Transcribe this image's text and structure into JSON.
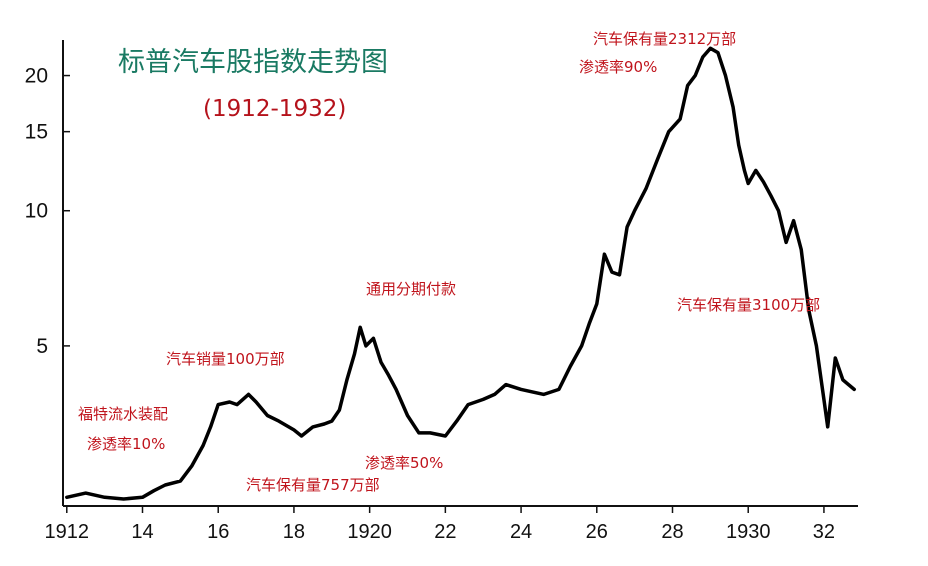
{
  "title": "标普汽车股指数走势图",
  "subtitle": "(1912-1932)",
  "chart_data": {
    "type": "line",
    "title": "标普汽车股指数走势图",
    "subtitle": "(1912-1932)",
    "y_scale": "log",
    "ylim": [
      2.2,
      24
    ],
    "xlim": [
      1911.9,
      1932.9
    ],
    "y_ticks": [
      5,
      10,
      15,
      20
    ],
    "x_ticks": [
      {
        "value": 1912,
        "label": "1912"
      },
      {
        "value": 1914,
        "label": "14"
      },
      {
        "value": 1916,
        "label": "16"
      },
      {
        "value": 1918,
        "label": "18"
      },
      {
        "value": 1920,
        "label": "1920"
      },
      {
        "value": 1922,
        "label": "22"
      },
      {
        "value": 1924,
        "label": "24"
      },
      {
        "value": 1926,
        "label": "26"
      },
      {
        "value": 1928,
        "label": "28"
      },
      {
        "value": 1930,
        "label": "1930"
      },
      {
        "value": 1932,
        "label": "32"
      }
    ],
    "series": [
      {
        "color": "#000000",
        "x": [
          1912.0,
          1912.5,
          1913.0,
          1913.5,
          1914.0,
          1914.3,
          1914.6,
          1915.0,
          1915.3,
          1915.6,
          1915.8,
          1916.0,
          1916.3,
          1916.5,
          1916.8,
          1917.0,
          1917.3,
          1917.6,
          1918.0,
          1918.2,
          1918.5,
          1918.8,
          1919.0,
          1919.2,
          1919.4,
          1919.6,
          1919.75,
          1919.9,
          1920.1,
          1920.3,
          1920.5,
          1920.7,
          1921.0,
          1921.3,
          1921.6,
          1922.0,
          1922.3,
          1922.6,
          1923.0,
          1923.3,
          1923.6,
          1924.0,
          1924.3,
          1924.6,
          1925.0,
          1925.3,
          1925.6,
          1925.8,
          1926.0,
          1926.2,
          1926.4,
          1926.6,
          1926.8,
          1927.0,
          1927.3,
          1927.6,
          1927.9,
          1928.2,
          1928.4,
          1928.6,
          1928.8,
          1929.0,
          1929.2,
          1929.4,
          1929.6,
          1929.75,
          1929.9,
          1930.0,
          1930.2,
          1930.4,
          1930.6,
          1930.8,
          1931.0,
          1931.2,
          1931.4,
          1931.6,
          1931.8,
          1932.0,
          1932.1,
          1932.3,
          1932.5,
          1932.8
        ],
        "values": [
          2.3,
          2.35,
          2.3,
          2.28,
          2.3,
          2.38,
          2.45,
          2.5,
          2.7,
          3.0,
          3.3,
          3.7,
          3.75,
          3.7,
          3.9,
          3.75,
          3.5,
          3.4,
          3.25,
          3.15,
          3.3,
          3.35,
          3.4,
          3.6,
          4.2,
          4.8,
          5.5,
          5.0,
          5.2,
          4.6,
          4.3,
          4.0,
          3.5,
          3.2,
          3.2,
          3.15,
          3.4,
          3.7,
          3.8,
          3.9,
          4.1,
          4.0,
          3.95,
          3.9,
          4.0,
          4.5,
          5.0,
          5.6,
          6.2,
          8.0,
          7.3,
          7.2,
          9.2,
          10.0,
          11.2,
          13.0,
          15.0,
          16.0,
          19.0,
          20.0,
          22.0,
          23.0,
          22.5,
          20.0,
          17.0,
          14.0,
          12.3,
          11.5,
          12.3,
          11.6,
          10.8,
          10.0,
          8.5,
          9.5,
          8.2,
          6.0,
          5.0,
          3.8,
          3.3,
          4.7,
          4.2,
          4.0
        ]
      }
    ],
    "annotations": [
      {
        "text": "汽车保有量2312万部",
        "x": 1928.9,
        "y": 23
      },
      {
        "text": "渗透率90%",
        "x": 1928.9,
        "y": 21
      },
      {
        "text": "通用分期付款",
        "x": 1920.0,
        "y": 6.6
      },
      {
        "text": "汽车保有量3100万部",
        "x": 1931.2,
        "y": 6.4
      },
      {
        "text": "汽车销量100万部",
        "x": 1916.5,
        "y": 4.9
      },
      {
        "text": "福特流水装配",
        "x": 1913.5,
        "y": 3.6
      },
      {
        "text": "渗透率10%",
        "x": 1913.5,
        "y": 3.3
      },
      {
        "text": "汽车保有量757万部",
        "x": 1918.3,
        "y": 2.6
      },
      {
        "text": "渗透率50%",
        "x": 1921.3,
        "y": 3.0
      }
    ],
    "grid": false,
    "legend": "none"
  },
  "annotations": {
    "a_2312": "汽车保有量2312万部",
    "a_90": "渗透率90%",
    "a_gm": "通用分期付款",
    "a_3100": "汽车保有量3100万部",
    "a_100": "汽车销量100万部",
    "a_ford": "福特流水装配",
    "a_10": "渗透率10%",
    "a_757": "汽车保有量757万部",
    "a_50": "渗透率50%"
  }
}
